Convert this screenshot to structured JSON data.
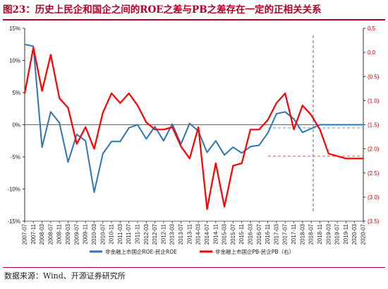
{
  "title": "图23：历史上民企和国企之间的ROE之差与PB之差存在一定的正相关关系",
  "source": "数据来源：Wind、开源证券研究所",
  "colors": {
    "title": "#b5002a",
    "roe_series": "#2e75b6",
    "pb_series": "#ff0000"
  },
  "chart_data": {
    "type": "line",
    "x": [
      "2007-07",
      "2007-11",
      "2008-03",
      "2008-07",
      "2008-11",
      "2009-03",
      "2009-07",
      "2009-11",
      "2010-03",
      "2010-07",
      "2010-11",
      "2011-03",
      "2011-07",
      "2011-11",
      "2012-03",
      "2012-07",
      "2012-11",
      "2013-03",
      "2013-07",
      "2013-11",
      "2014-03",
      "2014-07",
      "2014-11",
      "2015-03",
      "2015-07",
      "2015-11",
      "2016-03",
      "2016-07",
      "2016-11",
      "2017-03",
      "2017-07",
      "2017-11",
      "2018-03",
      "2018-07",
      "2018-11",
      "2019-03",
      "2019-07",
      "2019-11",
      "2020-03",
      "2020-07"
    ],
    "xlabel": "",
    "series": [
      {
        "name": "非金融上市国企ROE-民企ROE",
        "axis": "left",
        "values": [
          12.5,
          12.2,
          -3.5,
          2,
          0.3,
          -5.8,
          -1.5,
          -2.5,
          -10.5,
          -4.5,
          -2.6,
          -2.6,
          -0.5,
          0,
          -2.2,
          -0.3,
          -2.5,
          0.1,
          -3,
          0.2,
          -1,
          -4.3,
          -2.5,
          -4.7,
          -3.5,
          -4.4,
          -3.4,
          -3.2,
          -1.3,
          1.7,
          2,
          0.9,
          -1.2,
          -0.6,
          0,
          0,
          0,
          0,
          0,
          0
        ]
      },
      {
        "name": "非金融上市国企PB-民企PB（右）",
        "axis": "right",
        "values": [
          -0.85,
          0.1,
          -0.8,
          -0.05,
          -0.95,
          -1.15,
          -1.9,
          -1.55,
          -2,
          -1.25,
          -0.85,
          -1.05,
          -0.85,
          -1.1,
          -1.45,
          -1.6,
          -1.6,
          -1.55,
          -1.95,
          -2.2,
          -1.55,
          -3.25,
          -2.3,
          -3.2,
          -2.35,
          -2.3,
          -1.6,
          -1.6,
          -1.4,
          -1.05,
          -0.85,
          -1.6,
          -1.1,
          -1.3,
          -1.6,
          -2.1,
          -2.15,
          -2.2,
          -2.2,
          -2.2
        ]
      }
    ],
    "y_left": {
      "min": -15,
      "max": 15,
      "ticks": [
        -15,
        -10,
        -5,
        0,
        5,
        10,
        15
      ],
      "format": "percent"
    },
    "y_right": {
      "min": -3.5,
      "max": 0.5,
      "ticks": [
        -3.5,
        -3,
        -2.5,
        -2,
        -1.5,
        -1,
        -0.5,
        0,
        0.5
      ],
      "format": "paren_negative"
    },
    "grid": false,
    "legend_position": "bottom"
  }
}
